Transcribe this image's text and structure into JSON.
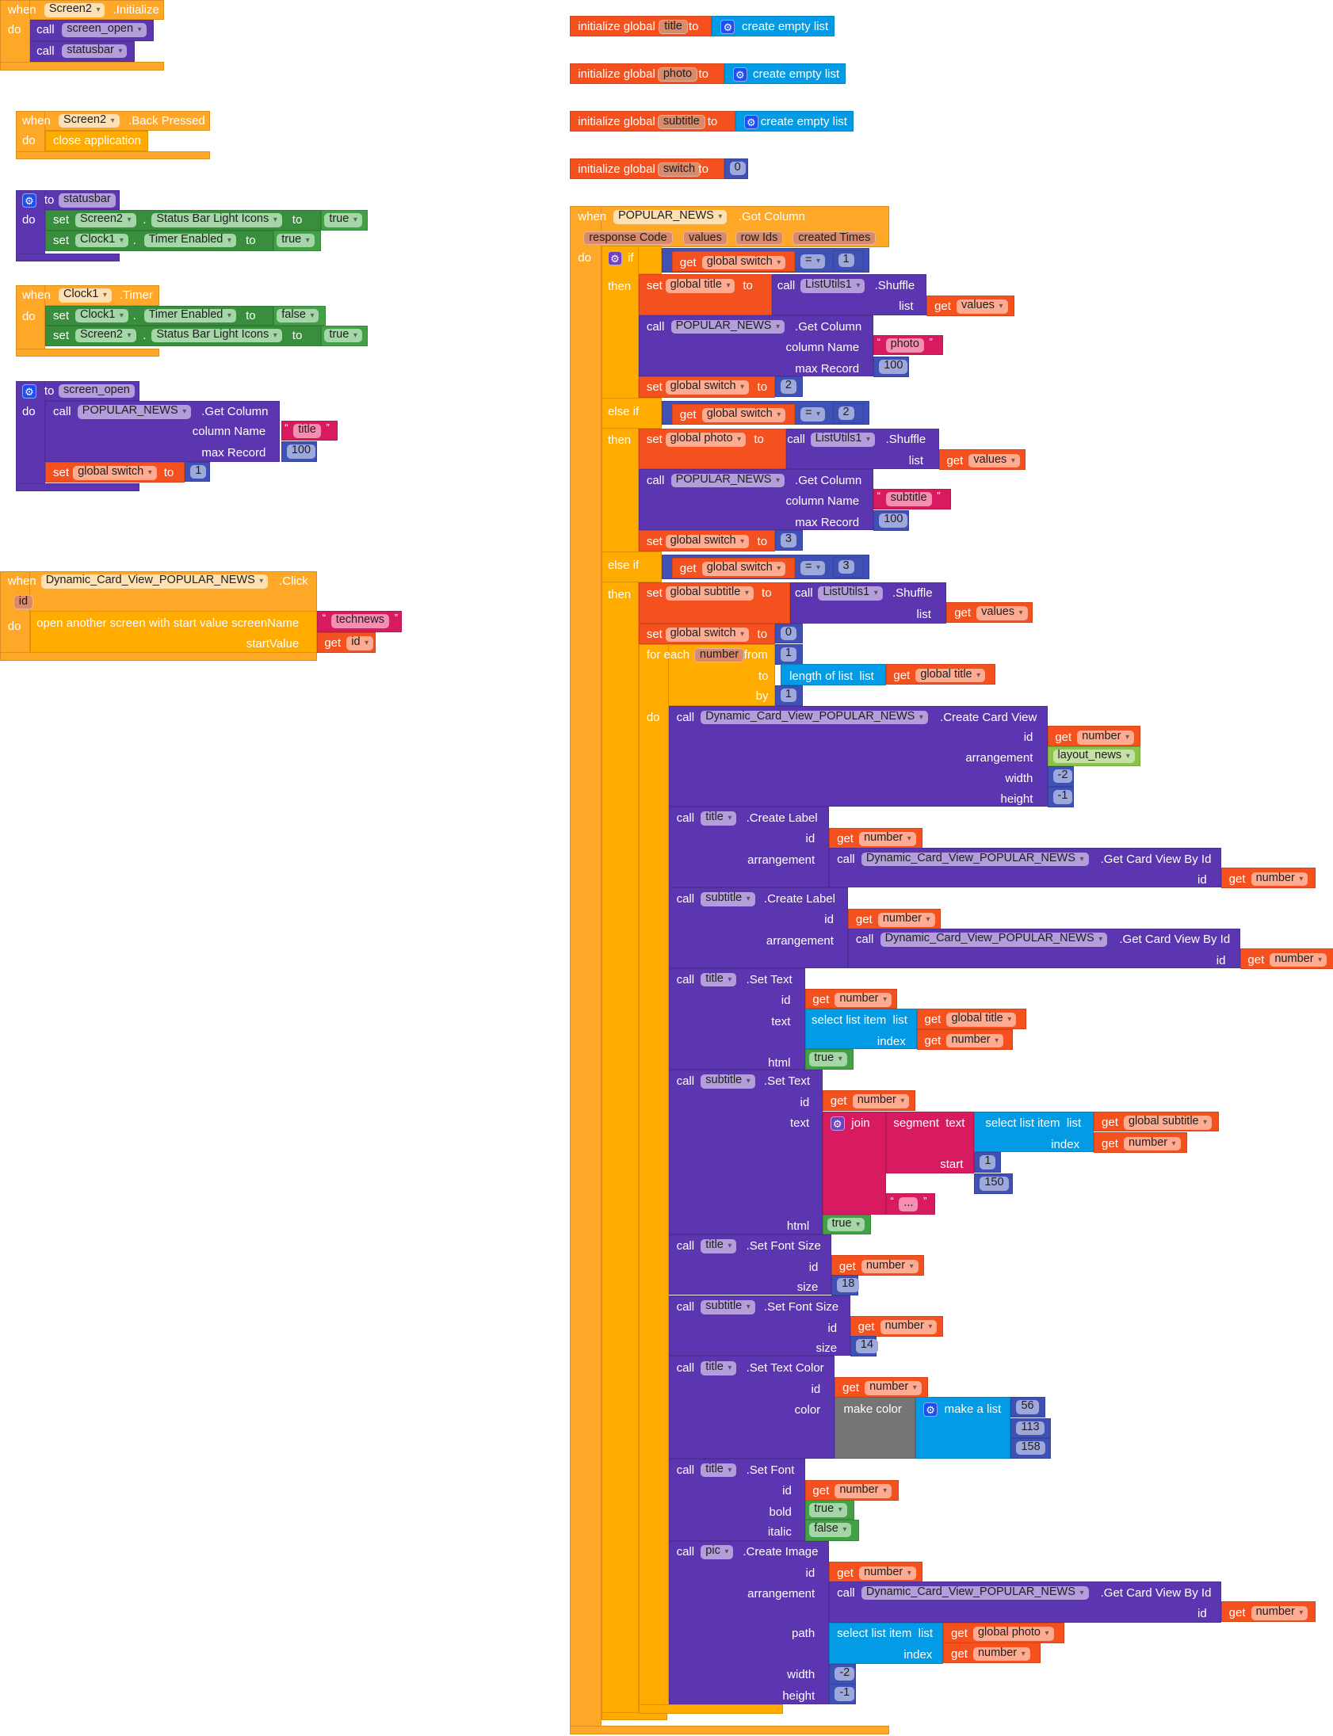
{
  "colors": {
    "event": "#ffa726",
    "control": "#ffab00",
    "procedure": "#5b36b0",
    "component_set": "#388e3c",
    "logic": "#43a047",
    "variable": "#f4511e",
    "math": "#3f51b5",
    "text": "#d81b60",
    "list": "#039be5",
    "color": "#757575"
  },
  "kw": {
    "when": "when",
    "do": "do",
    "call": "call",
    "set": "set",
    "get": "get",
    "to": "to",
    "dot": ".",
    "then": "then",
    "if": "if",
    "else_if": "else if",
    "list": "list",
    "index": "index",
    "id": "id",
    "init_global": "initialize global",
    "eq": "=",
    "column_name": "column Name",
    "max_record": "max Record",
    "shuffle": ".Shuffle",
    "get_column": ".Get Column",
    "for_each": "for each",
    "from": "from",
    "by": "by",
    "length_of_list": "length of list  list",
    "select_list_item": "select list item  list",
    "arrangement": "arrangement",
    "width": "width",
    "height": "height",
    "text": "text",
    "html": "html",
    "size": "size",
    "color": "color",
    "bold": "bold",
    "italic": "italic",
    "path": "path",
    "join": "join",
    "segment_text": "segment  text",
    "start": "start",
    "length": "length",
    "make_color": "make color",
    "make_a_list": "make a list",
    "get_card_view_by_id": ".Get Card View By Id"
  },
  "init": [
    {
      "name": "title",
      "value": "create empty list"
    },
    {
      "name": "photo",
      "value": "create empty list"
    },
    {
      "name": "subtitle",
      "value": "create empty list"
    },
    {
      "name": "switch",
      "value": "0"
    }
  ],
  "screen_init": {
    "component": "Screen2",
    "event": ".Initialize",
    "procs": [
      "screen_open",
      "statusbar"
    ]
  },
  "back_pressed": {
    "component": "Screen2",
    "event": ".Back Pressed",
    "action": "close application"
  },
  "proc_statusbar": {
    "name": "statusbar",
    "stmts": [
      {
        "component": "Screen2",
        "property": "Status Bar Light Icons",
        "value": "true"
      },
      {
        "component": "Clock1",
        "property": "Timer Enabled",
        "value": "true"
      }
    ]
  },
  "clock_timer": {
    "component": "Clock1",
    "event": ".Timer",
    "stmts": [
      {
        "component": "Clock1",
        "property": "Timer Enabled",
        "value": "false"
      },
      {
        "component": "Screen2",
        "property": "Status Bar Light Icons",
        "value": "true"
      }
    ]
  },
  "proc_screen_open": {
    "name": "screen_open",
    "component": "POPULAR_NEWS",
    "method": ".Get Column",
    "column_name": "title",
    "max_record": "100",
    "set_var": "global switch",
    "set_value": "1"
  },
  "card_click": {
    "component": "Dynamic_Card_View_POPULAR_NEWS",
    "event": ".Click",
    "param": "id",
    "action": "open another screen with start value",
    "screen_name_label": "screenName",
    "screen_name": "technews",
    "start_value_label": "startValue",
    "start_value_var": "id"
  },
  "gc": {
    "component": "POPULAR_NEWS",
    "event": ".Got Column",
    "params": [
      "response Code",
      "values",
      "row Ids",
      "created Times"
    ],
    "branches": [
      {
        "var": "global switch",
        "op": "=",
        "cmp": "1",
        "set_var": "global title",
        "shuffle_comp": "ListUtils1",
        "list_var": "values",
        "col_comp": "POPULAR_NEWS",
        "col_name": "photo",
        "max": "100",
        "switch_var": "global switch",
        "switch_val": "2"
      },
      {
        "var": "global switch",
        "op": "=",
        "cmp": "2",
        "set_var": "global photo",
        "shuffle_comp": "ListUtils1",
        "list_var": "values",
        "col_comp": "POPULAR_NEWS",
        "col_name": "subtitle",
        "max": "100",
        "switch_var": "global switch",
        "switch_val": "3"
      },
      {
        "var": "global switch",
        "op": "=",
        "cmp": "3",
        "set_var": "global subtitle",
        "shuffle_comp": "ListUtils1",
        "list_var": "values",
        "switch_var": "global switch",
        "switch_val": "0"
      }
    ],
    "loop": {
      "var": "number",
      "from": "1",
      "to_var": "global title",
      "by": "1"
    },
    "create_card": {
      "component": "Dynamic_Card_View_POPULAR_NEWS",
      "method": ".Create Card View",
      "id_var": "number",
      "arrangement": "layout_news",
      "width": "-2",
      "height": "-1"
    },
    "label_title": {
      "component": "title",
      "method": ".Create Label",
      "id_var": "number",
      "card_comp": "Dynamic_Card_View_POPULAR_NEWS",
      "card_id_var": "number"
    },
    "label_subtitle": {
      "component": "subtitle",
      "method": ".Create Label",
      "id_var": "number",
      "card_comp": "Dynamic_Card_View_POPULAR_NEWS",
      "card_id_var": "number"
    },
    "settext_title": {
      "component": "title",
      "method": ".Set Text",
      "id_var": "number",
      "list_var": "global title",
      "index_var": "number",
      "html": "true"
    },
    "settext_subtitle": {
      "component": "subtitle",
      "method": ".Set Text",
      "id_var": "number",
      "list_var": "global subtitle",
      "index_var": "number",
      "start": "1",
      "length": "150",
      "suffix": "...",
      "html": "true"
    },
    "fontsize_title": {
      "component": "title",
      "method": ".Set Font Size",
      "id_var": "number",
      "size": "18"
    },
    "fontsize_subtitle": {
      "component": "subtitle",
      "method": ".Set Font Size",
      "id_var": "number",
      "size": "14"
    },
    "textcolor_title": {
      "component": "title",
      "method": ".Set Text Color",
      "id_var": "number",
      "rgb": [
        "56",
        "113",
        "158"
      ]
    },
    "font_title": {
      "component": "title",
      "method": ".Set Font",
      "id_var": "number",
      "bold": "true",
      "italic": "false"
    },
    "image_pic": {
      "component": "pic",
      "method": ".Create Image",
      "id_var": "number",
      "card_comp": "Dynamic_Card_View_POPULAR_NEWS",
      "card_id_var": "number",
      "photo_var": "global photo",
      "index_var": "number",
      "width": "-2",
      "height": "-1"
    }
  }
}
